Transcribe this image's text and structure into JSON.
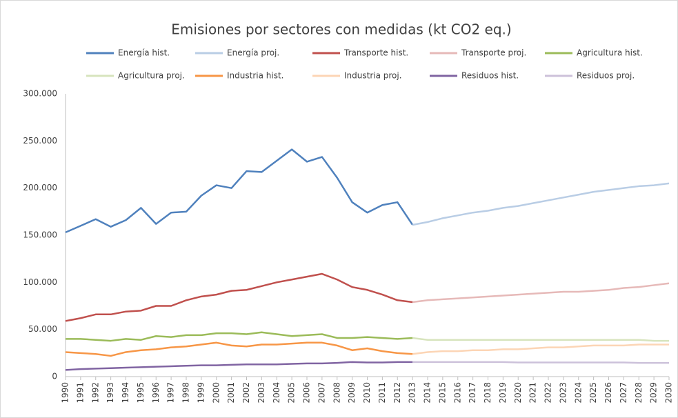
{
  "chart_data": {
    "type": "line",
    "title": "Emisiones por sectores con medidas (kt CO2 eq.)",
    "categories": [
      "1990",
      "1991",
      "1992",
      "1993",
      "1994",
      "1995",
      "1996",
      "1997",
      "1998",
      "1999",
      "2000",
      "2001",
      "2002",
      "2003",
      "2004",
      "2005",
      "2006",
      "2007",
      "2008",
      "2009",
      "2010",
      "2011",
      "2012",
      "2013",
      "2014",
      "2015",
      "2016",
      "2017",
      "2018",
      "2019",
      "2020",
      "2021",
      "2022",
      "2023",
      "2024",
      "2025",
      "2026",
      "2027",
      "2028",
      "2029",
      "2030"
    ],
    "series": [
      {
        "name": "Energía hist.",
        "color": "#4f81bd",
        "values": [
          153000,
          160000,
          167000,
          159000,
          166000,
          179000,
          162000,
          174000,
          175000,
          192000,
          203000,
          200000,
          218000,
          217000,
          229000,
          241000,
          228000,
          233000,
          211000,
          185000,
          174000,
          182000,
          185000,
          161000,
          null,
          null,
          null,
          null,
          null,
          null,
          null,
          null,
          null,
          null,
          null,
          null,
          null,
          null,
          null,
          null,
          null
        ]
      },
      {
        "name": "Energía proj.",
        "color": "#b9cde5",
        "values": [
          null,
          null,
          null,
          null,
          null,
          null,
          null,
          null,
          null,
          null,
          null,
          null,
          null,
          null,
          null,
          null,
          null,
          null,
          null,
          null,
          null,
          null,
          null,
          161000,
          164000,
          168000,
          171000,
          174000,
          176000,
          179000,
          181000,
          184000,
          187000,
          190000,
          193000,
          196000,
          198000,
          200000,
          202000,
          203000,
          205000
        ]
      },
      {
        "name": "Transporte hist.",
        "color": "#c0504d",
        "values": [
          59000,
          62000,
          66000,
          66000,
          69000,
          70000,
          75000,
          75000,
          81000,
          85000,
          87000,
          91000,
          92000,
          96000,
          100000,
          103000,
          106000,
          109000,
          103000,
          95000,
          92000,
          87000,
          81000,
          79000,
          null,
          null,
          null,
          null,
          null,
          null,
          null,
          null,
          null,
          null,
          null,
          null,
          null,
          null,
          null,
          null,
          null
        ]
      },
      {
        "name": "Transporte proj.",
        "color": "#e6b9b8",
        "values": [
          null,
          null,
          null,
          null,
          null,
          null,
          null,
          null,
          null,
          null,
          null,
          null,
          null,
          null,
          null,
          null,
          null,
          null,
          null,
          null,
          null,
          null,
          null,
          79000,
          81000,
          82000,
          83000,
          84000,
          85000,
          86000,
          87000,
          88000,
          89000,
          90000,
          90000,
          91000,
          92000,
          94000,
          95000,
          97000,
          99000
        ]
      },
      {
        "name": "Agricultura hist.",
        "color": "#9bbb59",
        "values": [
          40000,
          40000,
          39000,
          38000,
          40000,
          39000,
          43000,
          42000,
          44000,
          44000,
          46000,
          46000,
          45000,
          47000,
          45000,
          43000,
          44000,
          45000,
          41000,
          41000,
          42000,
          41000,
          40000,
          41000,
          null,
          null,
          null,
          null,
          null,
          null,
          null,
          null,
          null,
          null,
          null,
          null,
          null,
          null,
          null,
          null,
          null
        ]
      },
      {
        "name": "Agricultura proj.",
        "color": "#d7e4bd",
        "values": [
          null,
          null,
          null,
          null,
          null,
          null,
          null,
          null,
          null,
          null,
          null,
          null,
          null,
          null,
          null,
          null,
          null,
          null,
          null,
          null,
          null,
          null,
          null,
          41000,
          39000,
          39000,
          39000,
          39000,
          39000,
          39000,
          39000,
          39000,
          39000,
          39000,
          39000,
          39000,
          39000,
          39000,
          39000,
          38000,
          38000
        ]
      },
      {
        "name": "Industria hist.",
        "color": "#f79646",
        "values": [
          26000,
          25000,
          24000,
          22000,
          26000,
          28000,
          29000,
          31000,
          32000,
          34000,
          36000,
          33000,
          32000,
          34000,
          34000,
          35000,
          36000,
          36000,
          33000,
          28000,
          30000,
          27000,
          25000,
          24000,
          null,
          null,
          null,
          null,
          null,
          null,
          null,
          null,
          null,
          null,
          null,
          null,
          null,
          null,
          null,
          null,
          null
        ]
      },
      {
        "name": "Industria proj.",
        "color": "#fcd5b5",
        "values": [
          null,
          null,
          null,
          null,
          null,
          null,
          null,
          null,
          null,
          null,
          null,
          null,
          null,
          null,
          null,
          null,
          null,
          null,
          null,
          null,
          null,
          null,
          null,
          24000,
          26000,
          27000,
          27000,
          28000,
          28000,
          29000,
          29000,
          30000,
          31000,
          31000,
          32000,
          33000,
          33000,
          33000,
          34000,
          34000,
          34000
        ]
      },
      {
        "name": "Residuos hist.",
        "color": "#8064a2",
        "values": [
          7000,
          8000,
          8500,
          9000,
          9500,
          10000,
          10500,
          11000,
          11500,
          12000,
          12000,
          12500,
          13000,
          13000,
          13000,
          13500,
          14000,
          14000,
          14500,
          15500,
          15000,
          15000,
          15500,
          15500,
          null,
          null,
          null,
          null,
          null,
          null,
          null,
          null,
          null,
          null,
          null,
          null,
          null,
          null,
          null,
          null,
          null
        ]
      },
      {
        "name": "Residuos proj.",
        "color": "#ccc1da",
        "values": [
          null,
          null,
          null,
          null,
          null,
          null,
          null,
          null,
          null,
          null,
          null,
          null,
          null,
          null,
          null,
          null,
          null,
          null,
          null,
          null,
          null,
          null,
          null,
          15500,
          15500,
          15500,
          15500,
          15500,
          15500,
          15500,
          15000,
          15000,
          15000,
          15000,
          15000,
          15000,
          15000,
          15000,
          14500,
          14500,
          14500
        ]
      }
    ],
    "ylim": [
      0,
      300000
    ],
    "yticks": [
      0,
      {
        "value": 50000,
        "label": "50.000"
      },
      {
        "value": 100000,
        "label": "100.000"
      },
      {
        "value": 150000,
        "label": "150.000"
      },
      {
        "value": 200000,
        "label": "200.000"
      },
      {
        "value": 250000,
        "label": "250.000"
      },
      {
        "value": 300000,
        "label": "300.000"
      }
    ],
    "grid": false
  }
}
